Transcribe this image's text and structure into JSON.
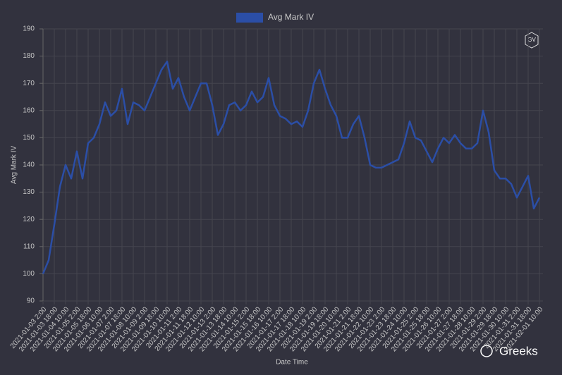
{
  "chart_data": {
    "type": "line",
    "legend_label": "Avg Mark IV",
    "y_label": "Avg Mark IV",
    "x_label": "Date Time",
    "categories": [
      "2021-01-03 2:00",
      null,
      "2021-01-03 18:00",
      null,
      "2021-01-04 10:00",
      null,
      "2021-01-05 2:00",
      null,
      "2021-01-05 18:00",
      null,
      "2021-01-06 10:00",
      null,
      "2021-01-07 2:00",
      null,
      "2021-01-07 18:00",
      null,
      "2021-01-08 10:00",
      null,
      "2021-01-09 2:00",
      null,
      "2021-01-09 18:00",
      null,
      "2021-01-10 10:00",
      null,
      "2021-01-11 2:00",
      null,
      "2021-01-11 18:00",
      null,
      "2021-01-12 10:00",
      null,
      "2021-01-13 2:00",
      null,
      "2021-01-13 18:00",
      null,
      "2021-01-14 10:00",
      null,
      "2021-01-15 2:00",
      null,
      "2021-01-15 18:00",
      null,
      "2021-01-16 10:00",
      null,
      "2021-01-17 2:00",
      null,
      "2021-01-17 18:00",
      null,
      "2021-01-18 10:00",
      null,
      "2021-01-19 2:00",
      null,
      "2021-01-19 18:00",
      null,
      "2021-01-20 10:00",
      null,
      "2021-01-21 2:00",
      null,
      "2021-01-21 18:00",
      null,
      "2021-01-22 10:00",
      null,
      "2021-01-23 2:00",
      null,
      "2021-01-23 18:00",
      null,
      "2021-01-24 10:00",
      null,
      "2021-01-25 2:00",
      null,
      "2021-01-25 18:00",
      null,
      "2021-01-26 10:00",
      null,
      "2021-01-27 2:00",
      null,
      "2021-01-27 18:00",
      null,
      "2021-01-28 10:00",
      null,
      "2021-01-29 2:00",
      null,
      "2021-01-29 18:00",
      null,
      "2021-01-30 10:00",
      null,
      "2021-01-31 2:00",
      null,
      "2021-01-31 18:00",
      null,
      "2021-02-01 10:00"
    ],
    "series": [
      {
        "name": "Avg Mark IV",
        "color": "#2b4ea6",
        "values": [
          100,
          105,
          118,
          132,
          140,
          135,
          145,
          135,
          148,
          150,
          155,
          163,
          158,
          160,
          168,
          155,
          163,
          162,
          160,
          165,
          170,
          175,
          178,
          168,
          172,
          165,
          160,
          165,
          170,
          170,
          162,
          151,
          155,
          162,
          163,
          160,
          162,
          167,
          163,
          165,
          172,
          162,
          158,
          157,
          155,
          156,
          154,
          160,
          170,
          175,
          168,
          162,
          158,
          150,
          150,
          155,
          158,
          150,
          140,
          139,
          139,
          140,
          141,
          142,
          148,
          156,
          150,
          149,
          145,
          141,
          146,
          150,
          148,
          151,
          148,
          146,
          146,
          148,
          160,
          152,
          138,
          135,
          135,
          133,
          128,
          132,
          136,
          124,
          128
        ]
      }
    ],
    "ylim": [
      90,
      190
    ],
    "yticks": [
      90,
      100,
      110,
      120,
      130,
      140,
      150,
      160,
      170,
      180,
      190
    ],
    "grid": true
  },
  "logo": "GV",
  "watermark": "Greeks"
}
